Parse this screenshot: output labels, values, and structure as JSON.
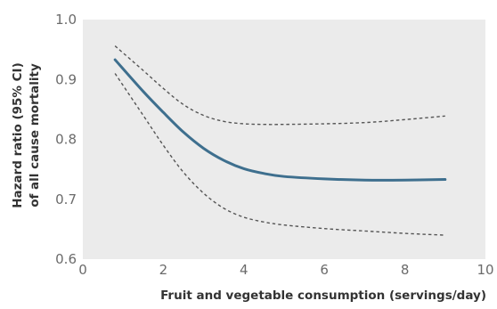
{
  "chart_data": {
    "type": "line",
    "xlabel": "Fruit and vegetable consumption (servings/day)",
    "ylabel_lines": [
      "Hazard ratio (95% CI)",
      "of all cause mortality"
    ],
    "xlim": [
      0,
      10
    ],
    "ylim": [
      0.6,
      1.0
    ],
    "x_ticks": [
      0,
      2,
      4,
      6,
      8,
      10
    ],
    "x_tick_labels": [
      "0",
      "2",
      "4",
      "6",
      "8",
      "10"
    ],
    "y_ticks": [
      1.0,
      0.9,
      0.8,
      0.7,
      0.6
    ],
    "y_tick_labels": [
      "1.0",
      "0.9",
      "0.8",
      "0.7",
      "0.6"
    ],
    "grid": false,
    "plot_background": "#ebebeb",
    "series": [
      {
        "role": "estimate",
        "color": "#3e6f8e",
        "style": "solid",
        "x": [
          0.8,
          1.5,
          2,
          2.5,
          3,
          3.5,
          4,
          4.5,
          5,
          6,
          7,
          8,
          9
        ],
        "y": [
          0.933,
          0.88,
          0.845,
          0.812,
          0.785,
          0.765,
          0.751,
          0.743,
          0.738,
          0.734,
          0.732,
          0.732,
          0.733
        ]
      },
      {
        "role": "upper-ci",
        "color": "#555555",
        "style": "dashed",
        "x": [
          0.8,
          1.5,
          2,
          2.5,
          3,
          3.5,
          4,
          4.5,
          5,
          6,
          7,
          8,
          9
        ],
        "y": [
          0.956,
          0.915,
          0.885,
          0.858,
          0.84,
          0.83,
          0.826,
          0.825,
          0.825,
          0.826,
          0.828,
          0.833,
          0.839
        ]
      },
      {
        "role": "lower-ci",
        "color": "#555555",
        "style": "dashed",
        "x": [
          0.8,
          1.5,
          2,
          2.5,
          3,
          3.5,
          4,
          4.5,
          5,
          6,
          7,
          8,
          9
        ],
        "y": [
          0.91,
          0.84,
          0.79,
          0.745,
          0.71,
          0.685,
          0.67,
          0.662,
          0.657,
          0.651,
          0.647,
          0.643,
          0.64
        ]
      }
    ]
  }
}
